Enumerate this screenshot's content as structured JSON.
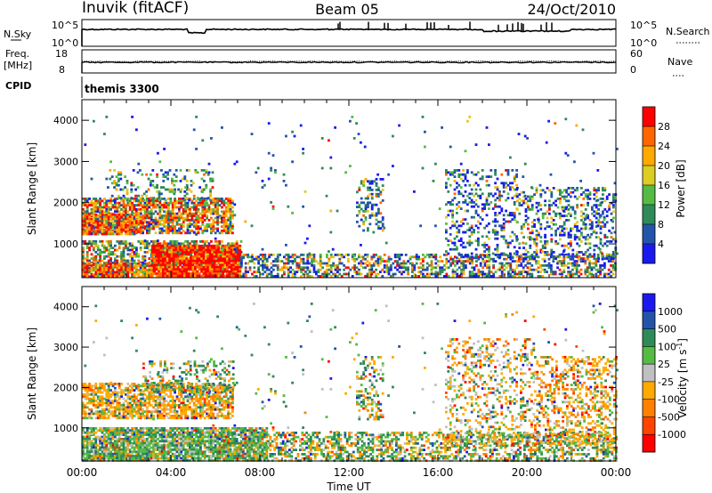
{
  "header": {
    "station": "Inuvik (fitACF)",
    "beam": "Beam 05",
    "date": "24/Oct/2010"
  },
  "noise_panel": {
    "left_label": "N.Sky",
    "left_top_tick": "10^5",
    "left_bottom_tick": "10^0",
    "right_label": "N.Search",
    "right_top_tick": "10^5",
    "right_bottom_tick": "10^0"
  },
  "freq_panel": {
    "left_label_line1": "Freq.",
    "left_label_line2": "[MHz]",
    "left_top_tick": "18",
    "left_bottom_tick": "8",
    "right_label": "Nave",
    "right_top_tick": "60",
    "right_bottom_tick": "0"
  },
  "cpid_panel": {
    "label": "CPID",
    "program": "themis 3300"
  },
  "chart_data": [
    {
      "type": "heatmap",
      "name": "power",
      "ylabel": "Slant Range [km]",
      "xlabel": "",
      "yticks": [
        "1000",
        "2000",
        "3000",
        "4000"
      ],
      "ylim": [
        180,
        4500
      ],
      "colorbar_label": "Power [dB]",
      "colorbar_ticks": [
        "4",
        "8",
        "12",
        "16",
        "20",
        "24",
        "28"
      ],
      "colors": [
        "#1a1aee",
        "#2255aa",
        "#2e8b57",
        "#55bb44",
        "#ddcc22",
        "#ffaa00",
        "#ff6600",
        "#ff0000"
      ]
    },
    {
      "type": "heatmap",
      "name": "velocity",
      "ylabel": "Slant Range [km]",
      "xlabel": "Time UT",
      "xticks": [
        "00:00",
        "04:00",
        "08:00",
        "12:00",
        "16:00",
        "20:00",
        "00:00"
      ],
      "yticks": [
        "1000",
        "2000",
        "3000",
        "4000"
      ],
      "ylim": [
        180,
        4500
      ],
      "colorbar_label": "Velocity [m s^-1]",
      "colorbar_ticks": [
        "1000",
        "500",
        "100",
        "25",
        "-25",
        "-100",
        "-500",
        "-1000"
      ],
      "colors": [
        "#1a1aee",
        "#2255aa",
        "#2e8b57",
        "#55bb44",
        "#c0c0c0",
        "#ffaa00",
        "#ff8000",
        "#ff4400",
        "#ff0000"
      ]
    }
  ]
}
